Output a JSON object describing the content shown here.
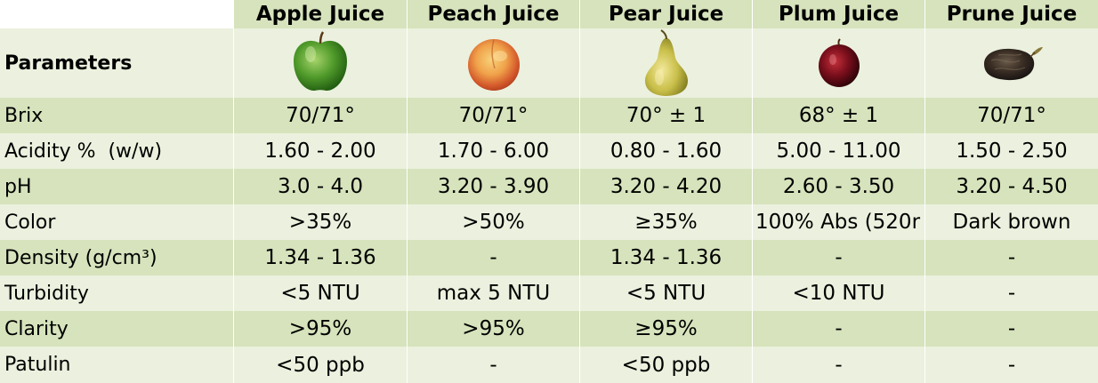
{
  "header": {
    "parameters_label": "Parameters",
    "columns": [
      {
        "title": "Apple Juice",
        "icon": "apple-icon"
      },
      {
        "title": "Peach Juice",
        "icon": "peach-icon"
      },
      {
        "title": "Pear Juice",
        "icon": "pear-icon"
      },
      {
        "title": "Plum Juice",
        "icon": "plum-icon"
      },
      {
        "title": "Prune Juice",
        "icon": "prune-icon"
      }
    ]
  },
  "rows": [
    {
      "label": "Brix",
      "values": [
        "70/71°",
        "70/71°",
        "70° ± 1",
        "68° ± 1",
        "70/71°"
      ]
    },
    {
      "label": "Acidity %  (w/w)",
      "values": [
        "1.60 - 2.00",
        "1.70 - 6.00",
        "0.80 - 1.60",
        "5.00 - 11.00",
        "1.50 - 2.50"
      ]
    },
    {
      "label": "pH",
      "values": [
        "3.0 - 4.0",
        "3.20 - 3.90",
        "3.20 - 4.20",
        "2.60 - 3.50",
        "3.20 - 4.50"
      ]
    },
    {
      "label": "Color",
      "values": [
        ">35%",
        ">50%",
        "≥35%",
        "100% Abs (520r",
        "Dark brown"
      ]
    },
    {
      "label": "Density (g/cm³)",
      "values": [
        "1.34 - 1.36",
        "-",
        "1.34 - 1.36",
        "-",
        "-"
      ]
    },
    {
      "label": "Turbidity",
      "values": [
        "<5 NTU",
        "max 5 NTU",
        "<5 NTU",
        "<10 NTU",
        "-"
      ]
    },
    {
      "label": "Clarity",
      "values": [
        ">95%",
        ">95%",
        "≥95%",
        "-",
        "-"
      ]
    },
    {
      "label": "Patulin",
      "values": [
        "<50 ppb",
        "-",
        "<50 ppb",
        "-",
        "-"
      ]
    }
  ],
  "colors": {
    "dark_row": "#d6e3bc",
    "light_row": "#ebf1de"
  }
}
